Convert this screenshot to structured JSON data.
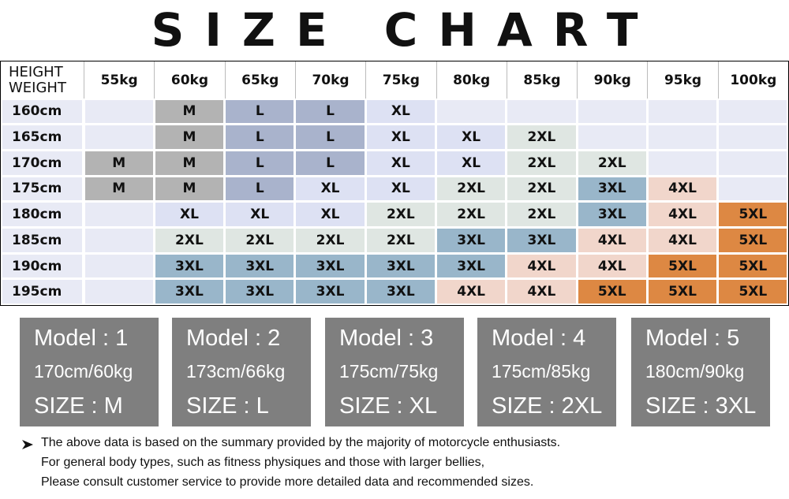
{
  "title": "SIZE CHART",
  "table": {
    "corner": [
      "HEIGHT",
      "WEIGHT"
    ],
    "columns": [
      "55kg",
      "60kg",
      "65kg",
      "70kg",
      "75kg",
      "80kg",
      "85kg",
      "90kg",
      "95kg",
      "100kg"
    ],
    "rows": [
      {
        "height": "160cm",
        "sizes": [
          null,
          "M",
          "L",
          "L",
          "XL",
          null,
          null,
          null,
          null,
          null
        ]
      },
      {
        "height": "165cm",
        "sizes": [
          null,
          "M",
          "L",
          "L",
          "XL",
          "XL",
          "2XL",
          null,
          null,
          null
        ]
      },
      {
        "height": "170cm",
        "sizes": [
          "M",
          "M",
          "L",
          "L",
          "XL",
          "XL",
          "2XL",
          "2XL",
          null,
          null
        ]
      },
      {
        "height": "175cm",
        "sizes": [
          "M",
          "M",
          "L",
          "XL",
          "XL",
          "2XL",
          "2XL",
          "3XL",
          "4XL",
          null
        ]
      },
      {
        "height": "180cm",
        "sizes": [
          null,
          "XL",
          "XL",
          "XL",
          "2XL",
          "2XL",
          "2XL",
          "3XL",
          "4XL",
          "5XL"
        ]
      },
      {
        "height": "185cm",
        "sizes": [
          null,
          "2XL",
          "2XL",
          "2XL",
          "2XL",
          "3XL",
          "3XL",
          "4XL",
          "4XL",
          "5XL"
        ]
      },
      {
        "height": "190cm",
        "sizes": [
          null,
          "3XL",
          "3XL",
          "3XL",
          "3XL",
          "3XL",
          "4XL",
          "4XL",
          "5XL",
          "5XL"
        ]
      },
      {
        "height": "195cm",
        "sizes": [
          null,
          "3XL",
          "3XL",
          "3XL",
          "3XL",
          "4XL",
          "4XL",
          "5XL",
          "5XL",
          "5XL"
        ]
      }
    ],
    "size_colors": {
      "M": "#b3b3b3",
      "L": "#a9b3cc",
      "XL": "#dde1f3",
      "2XL": "#dfe6e2",
      "3XL": "#99b6ca",
      "4XL": "#f1d6cb",
      "5XL": "#dd8843"
    },
    "empty_color": "#e8eaf5"
  },
  "models": [
    {
      "name": "Model : 1",
      "measure": "170cm/60kg",
      "size": "SIZE : M"
    },
    {
      "name": "Model : 2",
      "measure": "173cm/66kg",
      "size": "SIZE : L"
    },
    {
      "name": "Model : 3",
      "measure": "175cm/75kg",
      "size": "SIZE : XL"
    },
    {
      "name": "Model : 4",
      "measure": "175cm/85kg",
      "size": "SIZE : 2XL"
    },
    {
      "name": "Model : 5",
      "measure": "180cm/90kg",
      "size": "SIZE : 3XL"
    }
  ],
  "notes": [
    "The above data is based on the summary provided by the majority of motorcycle enthusiasts.",
    "For general body types, such as fitness physiques and those with larger bellies,",
    "Please consult customer service to provide more detailed data and recommended sizes."
  ]
}
